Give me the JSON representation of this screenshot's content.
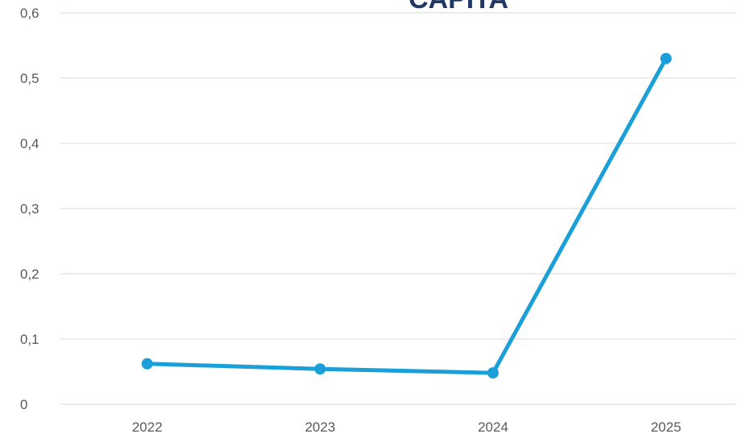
{
  "chart_data": {
    "type": "line",
    "title": "CAPITA",
    "categories": [
      "2022",
      "2023",
      "2024",
      "2025"
    ],
    "series": [
      {
        "name": "CAPITA",
        "color": "#1a9fd8",
        "values": [
          0.062,
          0.054,
          0.048,
          0.53
        ]
      }
    ],
    "ylim": [
      0,
      0.6
    ],
    "yticks": [
      0,
      {
        "value": 0.1,
        "label": "0,1"
      },
      {
        "value": 0.2,
        "label": "0,2"
      },
      {
        "value": 0.3,
        "label": "0,3"
      },
      {
        "value": 0.4,
        "label": "0,4"
      },
      {
        "value": 0.5,
        "label": "0,5"
      },
      {
        "value": 0.6,
        "label": "0,6"
      }
    ],
    "grid": true
  }
}
